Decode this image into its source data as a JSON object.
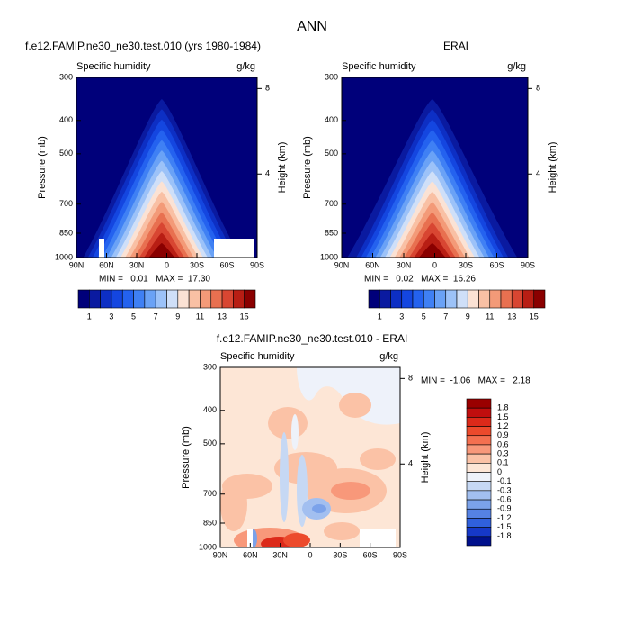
{
  "page_title": "ANN",
  "chart_data": [
    {
      "type": "contour",
      "title": "f.e12.FAMIP.ne30_ne30.test.010 (yrs 1980-1984)",
      "left_label": "Specific humidity",
      "right_label": "g/kg",
      "ylabel": "Pressure (mb)",
      "y2label": "Height (km)",
      "annotation": "MIN =   0.01   MAX =  17.30",
      "ylog": true,
      "ylim": [
        1000,
        300
      ],
      "yticks": [
        300,
        400,
        500,
        700,
        850,
        1000
      ],
      "y2ticks": [
        4,
        8
      ],
      "xlim": [
        90,
        -90
      ],
      "xticks": [
        {
          "value": 90,
          "label": "90N"
        },
        {
          "value": 60,
          "label": "60N"
        },
        {
          "value": 30,
          "label": "30N"
        },
        {
          "value": 0,
          "label": "0"
        },
        {
          "value": -30,
          "label": "30S"
        },
        {
          "value": -60,
          "label": "60S"
        },
        {
          "value": -90,
          "label": "90S"
        }
      ],
      "colorbar_labels": [
        1,
        3,
        5,
        7,
        9,
        11,
        13,
        15
      ],
      "colors": [
        "#00007a",
        "#0a1aa0",
        "#0d2fc4",
        "#1446e0",
        "#2462ef",
        "#3f80f4",
        "#6aa2f6",
        "#9cc2f8",
        "#cfdff8",
        "#fbe2d4",
        "#f9c0a4",
        "#f39a78",
        "#e87050",
        "#d84632",
        "#b81e14",
        "#8a0000"
      ]
    },
    {
      "type": "contour",
      "title": "ERAI",
      "left_label": "Specific humidity",
      "right_label": "g/kg",
      "ylabel": "Pressure (mb)",
      "y2label": "Height (km)",
      "annotation": "MIN =   0.02   MAX =  16.26",
      "ylog": true,
      "ylim": [
        1000,
        300
      ],
      "yticks": [
        300,
        400,
        500,
        700,
        850,
        1000
      ],
      "y2ticks": [
        4,
        8
      ],
      "xlim": [
        90,
        -90
      ],
      "xticks": [
        {
          "value": 90,
          "label": "90N"
        },
        {
          "value": 60,
          "label": "60N"
        },
        {
          "value": 30,
          "label": "30N"
        },
        {
          "value": 0,
          "label": "0"
        },
        {
          "value": -30,
          "label": "30S"
        },
        {
          "value": -60,
          "label": "60S"
        },
        {
          "value": -90,
          "label": "90S"
        }
      ],
      "colorbar_labels": [
        1,
        3,
        5,
        7,
        9,
        11,
        13,
        15
      ],
      "colors": [
        "#00007a",
        "#0a1aa0",
        "#0d2fc4",
        "#1446e0",
        "#2462ef",
        "#3f80f4",
        "#6aa2f6",
        "#9cc2f8",
        "#cfdff8",
        "#fbe2d4",
        "#f9c0a4",
        "#f39a78",
        "#e87050",
        "#d84632",
        "#b81e14",
        "#8a0000"
      ]
    },
    {
      "type": "contour",
      "title": "f.e12.FAMIP.ne30_ne30.test.010 - ERAI",
      "left_label": "Specific humidity",
      "right_label": "g/kg",
      "ylabel": "Pressure (mb)",
      "y2label": "Height (km)",
      "annotation": "MIN =  -1.06   MAX =   2.18",
      "ylog": true,
      "ylim": [
        1000,
        300
      ],
      "yticks": [
        300,
        400,
        500,
        700,
        850,
        1000
      ],
      "y2ticks": [
        4,
        8
      ],
      "xlim": [
        90,
        -90
      ],
      "xticks": [
        {
          "value": 90,
          "label": "90N"
        },
        {
          "value": 60,
          "label": "60N"
        },
        {
          "value": 30,
          "label": "30N"
        },
        {
          "value": 0,
          "label": "0"
        },
        {
          "value": -30,
          "label": "30S"
        },
        {
          "value": -60,
          "label": "60S"
        },
        {
          "value": -90,
          "label": "90S"
        }
      ],
      "colorbar_labels": [
        1.8,
        1.5,
        1.2,
        0.9,
        0.6,
        0.3,
        0.1,
        0,
        -0.1,
        -0.3,
        -0.6,
        -0.9,
        -1.2,
        -1.5,
        -1.8
      ],
      "colors": [
        "#9a0000",
        "#c00e0e",
        "#dc2a1a",
        "#ec4a2c",
        "#f47050",
        "#f8987a",
        "#fbc2a6",
        "#fde6d6",
        "#eef2fa",
        "#c6d8f4",
        "#a2bff0",
        "#7ba2ea",
        "#5582e4",
        "#3060dc",
        "#1638c8",
        "#00108c"
      ]
    }
  ]
}
